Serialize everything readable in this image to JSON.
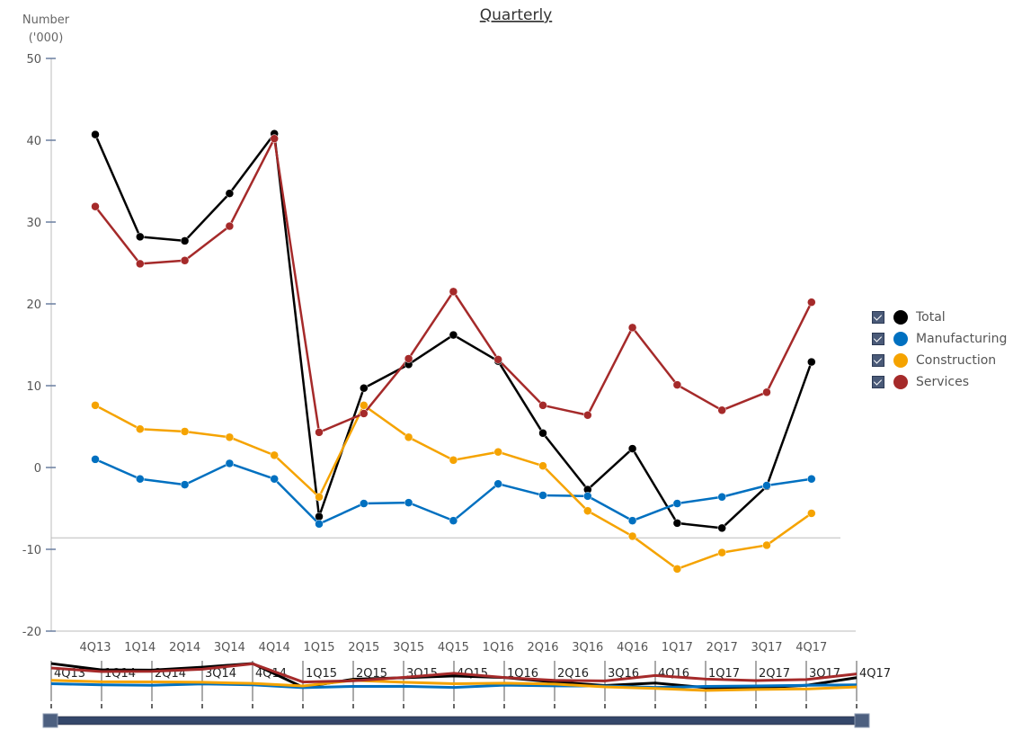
{
  "chart_data": {
    "type": "line",
    "title": "Quarterly",
    "ylabel": "Number ('000)",
    "ylabel_lines": [
      "Number",
      "('000)"
    ],
    "xlabel": "",
    "ylim": [
      -20,
      50
    ],
    "yticks": [
      -20,
      -10,
      0,
      10,
      20,
      30,
      40,
      50
    ],
    "grid": false,
    "legend": "right",
    "reference_line": -8.6,
    "categories": [
      "4Q13",
      "1Q14",
      "2Q14",
      "3Q14",
      "4Q14",
      "1Q15",
      "2Q15",
      "3Q15",
      "4Q15",
      "1Q16",
      "2Q16",
      "3Q16",
      "4Q16",
      "1Q17",
      "2Q17",
      "3Q17",
      "4Q17"
    ],
    "series": [
      {
        "name": "Total",
        "color": "#000000",
        "values": [
          40.7,
          28.2,
          27.7,
          33.5,
          40.8,
          -6.0,
          9.7,
          12.6,
          16.2,
          13.0,
          4.2,
          -2.7,
          2.3,
          -6.8,
          -7.4,
          -2.3,
          12.9
        ]
      },
      {
        "name": "Manufacturing",
        "color": "#0070c0",
        "values": [
          1.0,
          -1.4,
          -2.1,
          0.5,
          -1.4,
          -6.9,
          -4.4,
          -4.3,
          -6.5,
          -2.0,
          -3.4,
          -3.5,
          -6.5,
          -4.4,
          -3.6,
          -2.2,
          -1.4
        ]
      },
      {
        "name": "Construction",
        "color": "#f5a300",
        "values": [
          7.6,
          4.7,
          4.4,
          3.7,
          1.5,
          -3.6,
          7.6,
          3.7,
          0.9,
          1.9,
          0.2,
          -5.3,
          -8.4,
          -12.4,
          -10.4,
          -9.5,
          -5.6
        ]
      },
      {
        "name": "Services",
        "color": "#a52a2a",
        "values": [
          31.9,
          24.9,
          25.3,
          29.5,
          40.2,
          4.3,
          6.6,
          13.3,
          21.5,
          13.2,
          7.6,
          6.4,
          17.1,
          10.1,
          7.0,
          9.2,
          20.2
        ]
      }
    ]
  },
  "navigator": {
    "labels": [
      "4Q13",
      "1Q14",
      "2Q14",
      "3Q14",
      "4Q14",
      "1Q15",
      "2Q15",
      "3Q15",
      "4Q15",
      "1Q16",
      "2Q16",
      "3Q16",
      "4Q16",
      "1Q17",
      "2Q17",
      "3Q17",
      "4Q17"
    ]
  }
}
